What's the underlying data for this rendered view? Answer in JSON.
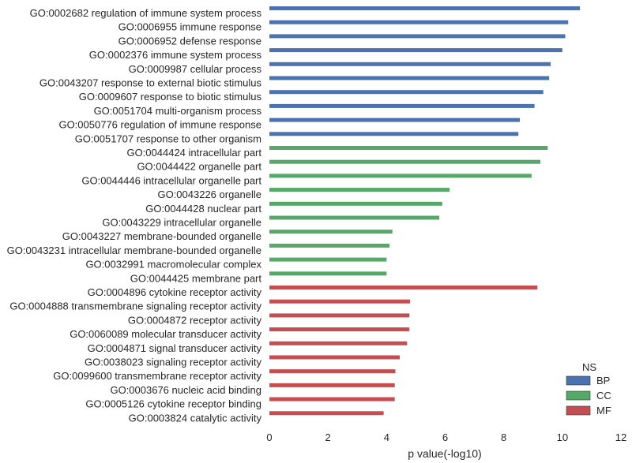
{
  "chart_data": {
    "type": "bar",
    "orientation": "horizontal",
    "xlabel": "p value(-log10)",
    "ylabel": "",
    "xlim": [
      0,
      12
    ],
    "xticks": [
      0,
      2,
      4,
      6,
      8,
      10,
      12
    ],
    "grid": false,
    "legend": {
      "title": "NS",
      "placement": "bottom-right",
      "entries": [
        {
          "name": "BP",
          "color": "#4c72b0"
        },
        {
          "name": "CC",
          "color": "#55a868"
        },
        {
          "name": "MF",
          "color": "#c44e52"
        }
      ]
    },
    "bars": [
      {
        "label": "GO:0002682 regulation of immune system process",
        "value": 10.6,
        "ns": "BP"
      },
      {
        "label": "GO:0006955 immune response",
        "value": 10.2,
        "ns": "BP"
      },
      {
        "label": "GO:0006952 defense response",
        "value": 10.1,
        "ns": "BP"
      },
      {
        "label": "GO:0002376 immune system process",
        "value": 10.0,
        "ns": "BP"
      },
      {
        "label": "GO:0009987 cellular process",
        "value": 9.6,
        "ns": "BP"
      },
      {
        "label": "GO:0043207 response to external biotic stimulus",
        "value": 9.55,
        "ns": "BP"
      },
      {
        "label": "GO:0009607 response to biotic stimulus",
        "value": 9.35,
        "ns": "BP"
      },
      {
        "label": "GO:0051704 multi-organism process",
        "value": 9.05,
        "ns": "BP"
      },
      {
        "label": "GO:0050776 regulation of immune response",
        "value": 8.55,
        "ns": "BP"
      },
      {
        "label": "GO:0051707 response to other organism",
        "value": 8.5,
        "ns": "BP"
      },
      {
        "label": "GO:0044424 intracellular part",
        "value": 9.5,
        "ns": "CC"
      },
      {
        "label": "GO:0044422 organelle part",
        "value": 9.25,
        "ns": "CC"
      },
      {
        "label": "GO:0044446 intracellular organelle part",
        "value": 8.95,
        "ns": "CC"
      },
      {
        "label": "GO:0043226 organelle",
        "value": 6.15,
        "ns": "CC"
      },
      {
        "label": "GO:0044428 nuclear part",
        "value": 5.9,
        "ns": "CC"
      },
      {
        "label": "GO:0043229 intracellular organelle",
        "value": 5.8,
        "ns": "CC"
      },
      {
        "label": "GO:0043227 membrane-bounded organelle",
        "value": 4.2,
        "ns": "CC"
      },
      {
        "label": "GO:0043231 intracellular membrane-bounded organelle",
        "value": 4.1,
        "ns": "CC"
      },
      {
        "label": "GO:0032991 macromolecular complex",
        "value": 4.0,
        "ns": "CC"
      },
      {
        "label": "GO:0044425 membrane part",
        "value": 4.0,
        "ns": "CC"
      },
      {
        "label": "GO:0004896 cytokine receptor activity",
        "value": 9.15,
        "ns": "MF"
      },
      {
        "label": "GO:0004888 transmembrane signaling receptor activity",
        "value": 4.8,
        "ns": "MF"
      },
      {
        "label": "GO:0004872 receptor activity",
        "value": 4.78,
        "ns": "MF"
      },
      {
        "label": "GO:0060089 molecular transducer activity",
        "value": 4.78,
        "ns": "MF"
      },
      {
        "label": "GO:0004871 signal transducer activity",
        "value": 4.7,
        "ns": "MF"
      },
      {
        "label": "GO:0038023 signaling receptor activity",
        "value": 4.45,
        "ns": "MF"
      },
      {
        "label": "GO:0099600 transmembrane receptor activity",
        "value": 4.3,
        "ns": "MF"
      },
      {
        "label": "GO:0003676 nucleic acid binding",
        "value": 4.28,
        "ns": "MF"
      },
      {
        "label": "GO:0005126 cytokine receptor binding",
        "value": 4.28,
        "ns": "MF"
      },
      {
        "label": "GO:0003824 catalytic activity",
        "value": 3.9,
        "ns": "MF"
      }
    ]
  }
}
